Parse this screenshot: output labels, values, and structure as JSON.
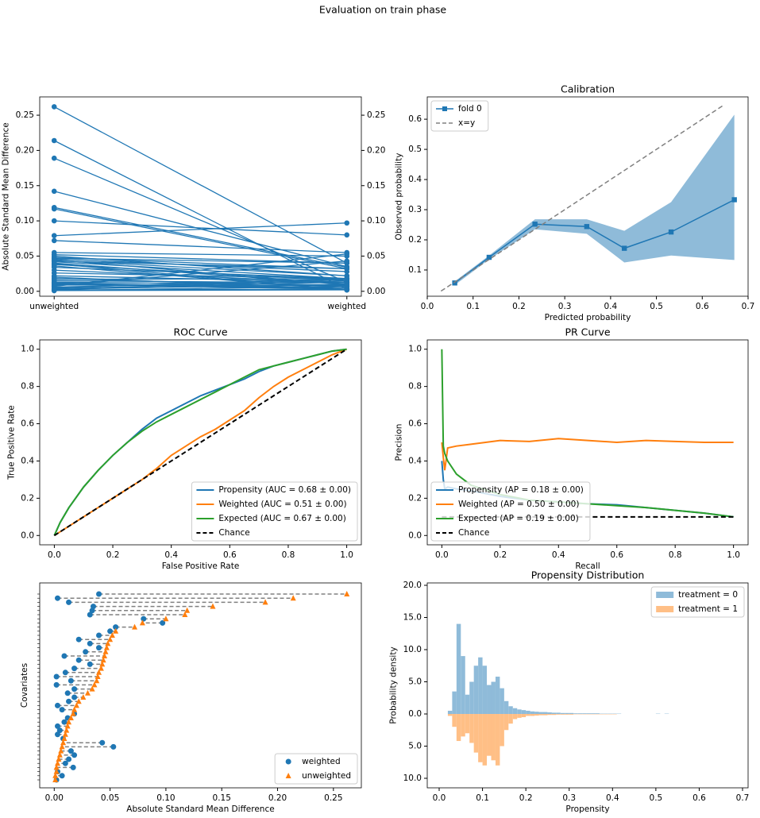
{
  "title": "Evaluation on train phase",
  "chart_data": [
    {
      "type": "slope",
      "ylabel": "Absolute Standard Mean Difference",
      "categories": [
        "unweighted",
        "weighted"
      ],
      "color": "#1f77b4",
      "ylim": [
        -0.007,
        0.276
      ],
      "yticks": [
        {
          "value": 0,
          "label": "0.00"
        },
        0.05,
        {
          "value": 0.1,
          "label": "0.10"
        },
        0.15,
        {
          "value": 0.2,
          "label": "0.20"
        },
        0.25
      ],
      "y2lim": [
        -0.007,
        0.276
      ],
      "y2ticks": [
        {
          "value": 0,
          "label": "0.00"
        },
        0.05,
        {
          "value": 0.1,
          "label": "0.10"
        },
        0.15,
        {
          "value": 0.2,
          "label": "0.20"
        },
        0.25
      ],
      "series": [
        {
          "values": [
            0.262,
            0.04
          ]
        },
        {
          "values": [
            0.214,
            0.003
          ]
        },
        {
          "values": [
            0.189,
            0.013
          ]
        },
        {
          "values": [
            0.142,
            0.035
          ]
        },
        {
          "values": [
            0.119,
            0.034
          ]
        },
        {
          "values": [
            0.117,
            0.032
          ]
        },
        {
          "values": [
            0.1,
            0.08
          ]
        },
        {
          "values": [
            0.079,
            0.097
          ]
        },
        {
          "values": [
            0.072,
            0.055
          ]
        },
        {
          "values": [
            0.055,
            0.05
          ]
        },
        {
          "values": [
            0.052,
            0.04
          ]
        },
        {
          "values": [
            0.05,
            0.022
          ]
        },
        {
          "values": [
            0.048,
            0.032
          ]
        },
        {
          "values": [
            0.047,
            0.04
          ]
        },
        {
          "values": [
            0.046,
            0.028
          ]
        },
        {
          "values": [
            0.045,
            0.009
          ]
        },
        {
          "values": [
            0.044,
            0.022
          ]
        },
        {
          "values": [
            0.043,
            0.032
          ]
        },
        {
          "values": [
            0.042,
            0.018
          ]
        },
        {
          "values": [
            0.04,
            0.01
          ]
        },
        {
          "values": [
            0.039,
            0.002
          ]
        },
        {
          "values": [
            0.038,
            0.015
          ]
        },
        {
          "values": [
            0.036,
            0.002
          ]
        },
        {
          "values": [
            0.034,
            0.018
          ]
        },
        {
          "values": [
            0.03,
            0.012
          ]
        },
        {
          "values": [
            0.026,
            0.018
          ]
        },
        {
          "values": [
            0.022,
            0.013
          ]
        },
        {
          "values": [
            0.02,
            0.003
          ]
        },
        {
          "values": [
            0.018,
            0.007
          ]
        },
        {
          "values": [
            0.017,
            0.018
          ]
        },
        {
          "values": [
            0.015,
            0.012
          ]
        },
        {
          "values": [
            0.013,
            0.009
          ]
        },
        {
          "values": [
            0.012,
            0.003
          ]
        },
        {
          "values": [
            0.011,
            0.005
          ]
        },
        {
          "values": [
            0.01,
            0.003
          ]
        },
        {
          "values": [
            0.009,
            0.008
          ]
        },
        {
          "values": [
            0.008,
            0.043
          ]
        },
        {
          "values": [
            0.007,
            0.053
          ]
        },
        {
          "values": [
            0.006,
            0.015
          ]
        },
        {
          "values": [
            0.005,
            0.018
          ]
        },
        {
          "values": [
            0.004,
            0.013
          ]
        },
        {
          "values": [
            0.003,
            0.01
          ]
        },
        {
          "values": [
            0.002,
            0.017
          ]
        },
        {
          "values": [
            0.002,
            0.003
          ]
        },
        {
          "values": [
            0.001,
            0.007
          ]
        },
        {
          "values": [
            0.001,
            0.002
          ]
        }
      ]
    },
    {
      "type": "line",
      "title": "Calibration",
      "xlabel": "Predicted probability",
      "ylabel": "Observed probability",
      "xlim": [
        0,
        0.7
      ],
      "xticks": [
        {
          "value": 0,
          "label": "0.0"
        },
        0.1,
        0.2,
        0.3,
        0.4,
        0.5,
        0.6,
        0.7
      ],
      "ylim": [
        0.013,
        0.674
      ],
      "yticks": [
        0.1,
        0.2,
        0.3,
        0.4,
        0.5,
        0.6
      ],
      "legend": "upper left",
      "series": [
        {
          "name": "fold 0",
          "color": "#1f77b4",
          "marker": "s",
          "band_color": "#8fbbd9",
          "x": [
            0.06,
            0.135,
            0.235,
            0.348,
            0.43,
            0.532,
            0.67
          ],
          "values": [
            0.057,
            0.142,
            0.252,
            0.244,
            0.172,
            0.226,
            0.333
          ],
          "lower": [
            0.05,
            0.135,
            0.235,
            0.22,
            0.125,
            0.148,
            0.133
          ],
          "upper": [
            0.062,
            0.148,
            0.268,
            0.268,
            0.23,
            0.325,
            0.615
          ]
        },
        {
          "name": "x=y",
          "color": "#808080",
          "dash": true,
          "x": [
            0.03,
            0.645
          ],
          "values": [
            0.03,
            0.645
          ]
        }
      ]
    },
    {
      "type": "line",
      "title": "ROC Curve",
      "xlabel": "False Positive Rate",
      "ylabel": "True Positive Rate",
      "xlim": [
        -0.05,
        1.05
      ],
      "xticks": [
        {
          "value": 0,
          "label": "0.0"
        },
        0.2,
        0.4,
        0.6,
        0.8,
        {
          "value": 1,
          "label": "1.0"
        }
      ],
      "ylim": [
        -0.05,
        1.05
      ],
      "yticks": [
        {
          "value": 0,
          "label": "0.0"
        },
        0.2,
        0.4,
        0.6,
        0.8,
        {
          "value": 1,
          "label": "1.0"
        }
      ],
      "legend": "lower right",
      "width": 2,
      "series": [
        {
          "name": "Propensity (AUC = 0.68 ± 0.00)",
          "color": "#1f77b4",
          "x": [
            0,
            0.02,
            0.05,
            0.1,
            0.15,
            0.2,
            0.25,
            0.3,
            0.35,
            0.4,
            0.45,
            0.5,
            0.55,
            0.6,
            0.65,
            0.7,
            0.75,
            0.8,
            0.85,
            0.9,
            0.95,
            1
          ],
          "values": [
            0,
            0.07,
            0.15,
            0.26,
            0.35,
            0.43,
            0.5,
            0.57,
            0.63,
            0.67,
            0.71,
            0.75,
            0.78,
            0.81,
            0.84,
            0.88,
            0.91,
            0.93,
            0.95,
            0.97,
            0.99,
            1
          ]
        },
        {
          "name": "Weighted (AUC = 0.51 ± 0.00)",
          "color": "#ff7f0e",
          "x": [
            0,
            0.02,
            0.05,
            0.1,
            0.15,
            0.2,
            0.25,
            0.3,
            0.35,
            0.4,
            0.45,
            0.5,
            0.55,
            0.6,
            0.65,
            0.7,
            0.75,
            0.8,
            0.85,
            0.9,
            0.95,
            1
          ],
          "values": [
            0,
            0.02,
            0.05,
            0.1,
            0.15,
            0.2,
            0.25,
            0.3,
            0.36,
            0.43,
            0.48,
            0.53,
            0.57,
            0.62,
            0.67,
            0.74,
            0.8,
            0.85,
            0.89,
            0.93,
            0.97,
            1
          ]
        },
        {
          "name": "Expected (AUC = 0.67 ± 0.00)",
          "color": "#2ca02c",
          "x": [
            0,
            0.02,
            0.05,
            0.1,
            0.15,
            0.2,
            0.25,
            0.3,
            0.35,
            0.4,
            0.45,
            0.5,
            0.55,
            0.6,
            0.65,
            0.7,
            0.75,
            0.8,
            0.85,
            0.9,
            0.95,
            1
          ],
          "values": [
            0,
            0.07,
            0.15,
            0.26,
            0.35,
            0.43,
            0.5,
            0.56,
            0.61,
            0.65,
            0.69,
            0.73,
            0.77,
            0.81,
            0.85,
            0.89,
            0.91,
            0.93,
            0.95,
            0.97,
            0.99,
            1
          ]
        },
        {
          "name": "Chance",
          "color": "#000000",
          "dash": true,
          "x": [
            0,
            1
          ],
          "values": [
            0,
            1
          ]
        }
      ]
    },
    {
      "type": "line",
      "title": "PR Curve",
      "xlabel": "Recall",
      "ylabel": "Precision",
      "xlim": [
        -0.05,
        1.05
      ],
      "xticks": [
        {
          "value": 0,
          "label": "0.0"
        },
        0.2,
        0.4,
        0.6,
        0.8,
        {
          "value": 1,
          "label": "1.0"
        }
      ],
      "ylim": [
        -0.05,
        1.05
      ],
      "yticks": [
        {
          "value": 0,
          "label": "0.0"
        },
        0.2,
        0.4,
        0.6,
        0.8,
        {
          "value": 1,
          "label": "1.0"
        }
      ],
      "legend": "lower left",
      "width": 2,
      "series": [
        {
          "name": "Propensity (AP = 0.18 ± 0.00)",
          "color": "#1f77b4",
          "x": [
            0,
            0.005,
            0.01,
            0.02,
            0.05,
            0.1,
            0.2,
            0.3,
            0.4,
            0.5,
            0.6,
            0.7,
            0.8,
            0.9,
            1
          ],
          "values": [
            0.4,
            0.3,
            0.25,
            0.26,
            0.25,
            0.24,
            0.21,
            0.19,
            0.18,
            0.17,
            0.165,
            0.15,
            0.135,
            0.12,
            0.1
          ]
        },
        {
          "name": "Weighted (AP = 0.50 ± 0.00)",
          "color": "#ff7f0e",
          "x": [
            0,
            0.005,
            0.01,
            0.02,
            0.05,
            0.1,
            0.2,
            0.3,
            0.4,
            0.5,
            0.6,
            0.7,
            0.8,
            0.9,
            1
          ],
          "values": [
            0.5,
            0.42,
            0.35,
            0.47,
            0.48,
            0.49,
            0.51,
            0.505,
            0.52,
            0.51,
            0.5,
            0.51,
            0.505,
            0.5,
            0.5
          ]
        },
        {
          "name": "Expected (AP = 0.19 ± 0.00)",
          "color": "#2ca02c",
          "x": [
            0,
            0.005,
            0.01,
            0.02,
            0.05,
            0.1,
            0.2,
            0.3,
            0.4,
            0.5,
            0.6,
            0.7,
            0.8,
            0.9,
            1
          ],
          "values": [
            1,
            0.48,
            0.44,
            0.4,
            0.33,
            0.27,
            0.22,
            0.19,
            0.18,
            0.17,
            0.16,
            0.15,
            0.135,
            0.12,
            0.1
          ]
        },
        {
          "name": "Chance",
          "color": "#000000",
          "dash": true,
          "x": [
            0,
            1
          ],
          "values": [
            0.1,
            0.1
          ]
        }
      ]
    },
    {
      "type": "dot",
      "xlabel": "Absolute Standard Mean Difference",
      "ylabel": "Covariates",
      "xlim": [
        -0.013,
        0.275
      ],
      "xticks": [
        {
          "value": 0,
          "label": "0.00"
        },
        0.05,
        {
          "value": 0.1,
          "label": "0.10"
        },
        0.15,
        {
          "value": 0.2,
          "label": "0.20"
        },
        0.25
      ],
      "legend": "lower right",
      "line_color": "#808080",
      "series": [
        {
          "name": "weighted",
          "color": "#1f77b4",
          "marker": "o",
          "values": [
            0.04,
            0.003,
            0.013,
            0.035,
            0.034,
            0.032,
            0.08,
            0.097,
            0.055,
            0.05,
            0.04,
            0.022,
            0.032,
            0.04,
            0.028,
            0.009,
            0.022,
            0.032,
            0.018,
            0.01,
            0.002,
            0.015,
            0.002,
            0.018,
            0.012,
            0.018,
            0.013,
            0.003,
            0.007,
            0.018,
            0.012,
            0.009,
            0.003,
            0.005,
            0.003,
            0.008,
            0.043,
            0.053,
            0.015,
            0.018,
            0.013,
            0.01,
            0.017,
            0.003,
            0.007,
            0.002
          ]
        },
        {
          "name": "unweighted",
          "color": "#ff7f0e",
          "marker": "^",
          "values": [
            0.262,
            0.214,
            0.189,
            0.142,
            0.119,
            0.117,
            0.1,
            0.079,
            0.072,
            0.055,
            0.052,
            0.05,
            0.048,
            0.047,
            0.046,
            0.045,
            0.044,
            0.043,
            0.042,
            0.04,
            0.039,
            0.038,
            0.036,
            0.034,
            0.03,
            0.026,
            0.022,
            0.02,
            0.018,
            0.017,
            0.015,
            0.013,
            0.012,
            0.011,
            0.01,
            0.009,
            0.008,
            0.007,
            0.006,
            0.005,
            0.004,
            0.003,
            0.002,
            0.002,
            0.001,
            0.001
          ]
        }
      ]
    },
    {
      "type": "histogram",
      "title": "Propensity Distribution",
      "xlabel": "Propensity",
      "ylabel": "Probability density",
      "xlim": [
        -0.0275,
        0.7128
      ],
      "xticks": [
        {
          "value": 0,
          "label": "0.0"
        },
        0.1,
        0.2,
        0.3,
        0.4,
        0.5,
        0.6,
        0.7
      ],
      "ylim": [
        -11.48,
        20.37
      ],
      "yticks": [
        {
          "value": 20,
          "label": "20.0"
        },
        {
          "value": 15,
          "label": "15.0"
        },
        {
          "value": 10,
          "label": "10.0"
        },
        {
          "value": 5,
          "label": "5.0"
        },
        {
          "value": 0,
          "label": "0.0"
        },
        {
          "value": -5,
          "label": "5.0"
        },
        {
          "value": -10,
          "label": "10.0"
        }
      ],
      "legend": "upper right",
      "bins": [
        0,
        0.01,
        0.02,
        0.03,
        0.04,
        0.05,
        0.06,
        0.07,
        0.08,
        0.09,
        0.1,
        0.11,
        0.12,
        0.13,
        0.14,
        0.15,
        0.16,
        0.17,
        0.18,
        0.19,
        0.2,
        0.21,
        0.22,
        0.23,
        0.24,
        0.25,
        0.26,
        0.27,
        0.28,
        0.29,
        0.3,
        0.31,
        0.32,
        0.33,
        0.34,
        0.35,
        0.36,
        0.37,
        0.38,
        0.39,
        0.4,
        0.41,
        0.42,
        0.43,
        0.44,
        0.45,
        0.46,
        0.47,
        0.48,
        0.49,
        0.5,
        0.51,
        0.52,
        0.53
      ],
      "series": [
        {
          "name": "treatment = 0",
          "color": "#8fbbd9",
          "values": [
            0,
            0,
            0.5,
            3.5,
            14,
            9,
            3,
            5,
            7.5,
            8.8,
            7.5,
            4.5,
            5,
            5.8,
            4,
            2,
            1.2,
            0.9,
            0.7,
            0.6,
            0.5,
            0.4,
            0.35,
            0.3,
            0.3,
            0.25,
            0.2,
            0.2,
            0.15,
            0.15,
            0.15,
            0.1,
            0.1,
            0.1,
            0.1,
            0.1,
            0.1,
            0.05,
            0.05,
            0.05,
            0.05,
            0.05,
            0,
            0,
            0,
            0,
            0,
            0,
            0,
            0,
            0.05,
            0,
            0.05
          ]
        },
        {
          "name": "treatment = 1",
          "color": "#ffbf86",
          "values": [
            0,
            0,
            -0.3,
            -2,
            -4.2,
            -3.5,
            -3,
            -4.5,
            -6,
            -7.5,
            -8,
            -6.5,
            -7.2,
            -8,
            -5,
            -2.5,
            -1.5,
            -0.8,
            -0.6,
            -0.5,
            -0.3,
            -0.3,
            -0.25,
            -0.2,
            -0.2,
            -0.15,
            -0.15,
            -0.1,
            -0.1,
            -0.1,
            -0.1,
            -0.05,
            -0.05,
            -0.05,
            -0.05,
            -0.05,
            -0.05,
            -0.05,
            -0.05,
            -0.05,
            -0.05,
            0,
            0,
            0,
            0,
            0,
            0,
            0,
            0,
            0,
            0,
            0,
            0
          ]
        }
      ]
    }
  ]
}
